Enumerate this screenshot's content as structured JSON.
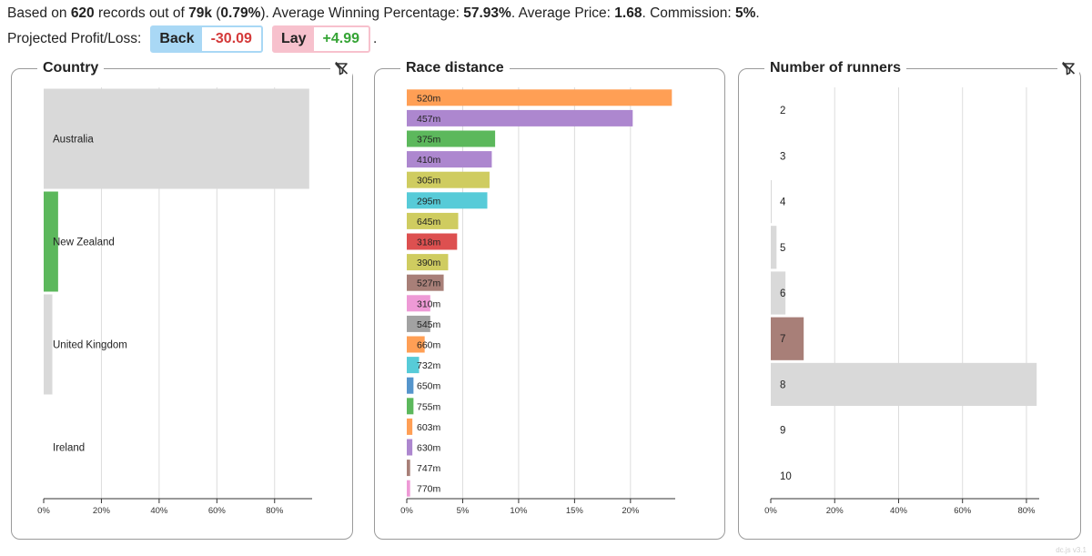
{
  "summary": {
    "prefix": "Based on ",
    "records": "620",
    "mid1": " records out of ",
    "total": "79k",
    "mid2": " (",
    "percent": "0.79%",
    "mid3": "). Average Winning Percentage: ",
    "avg_win": "57.93%",
    "mid4": ". Average Price: ",
    "avg_price": "1.68",
    "mid5": ". Commission: ",
    "commission": "5%",
    "end": "."
  },
  "profit_loss": {
    "label": "Projected Profit/Loss:",
    "back_label": "Back",
    "back_value": "-30.09",
    "lay_label": "Lay",
    "lay_value": "+4.99",
    "trailing": "."
  },
  "colors": {
    "panel_border": "#9a9a9a",
    "grid": "#dcdcdc",
    "back_box": "#a9d8f5",
    "lay_box": "#f7c1cd",
    "negative": "#d43a3a",
    "positive": "#35a435"
  },
  "chart_data": [
    {
      "type": "bar",
      "orientation": "horizontal",
      "title": "Country",
      "icon": "filter-off-icon",
      "xlim": [
        0,
        93
      ],
      "ticks": [
        "0%",
        "20%",
        "40%",
        "60%",
        "80%"
      ],
      "tick_values": [
        0,
        20,
        40,
        60,
        80
      ],
      "grid": true,
      "categories": [
        "Australia",
        "New Zealand",
        "United Kingdom",
        "Ireland"
      ],
      "values": [
        92,
        5,
        3,
        0
      ],
      "colors": [
        "#d9d9d9",
        "#5cb85c",
        "#d9d9d9",
        "#d9d9d9"
      ]
    },
    {
      "type": "bar",
      "orientation": "horizontal",
      "title": "Race distance",
      "xlim": [
        0,
        24
      ],
      "ticks": [
        "0%",
        "5%",
        "10%",
        "15%",
        "20%"
      ],
      "tick_values": [
        0,
        5,
        10,
        15,
        20
      ],
      "grid": true,
      "categories": [
        "520m",
        "457m",
        "375m",
        "410m",
        "305m",
        "295m",
        "645m",
        "318m",
        "390m",
        "527m",
        "310m",
        "545m",
        "660m",
        "732m",
        "650m",
        "755m",
        "603m",
        "630m",
        "747m",
        "770m"
      ],
      "values": [
        23.7,
        20.2,
        7.9,
        7.6,
        7.4,
        7.2,
        4.6,
        4.5,
        3.7,
        3.3,
        2.1,
        2.1,
        1.6,
        1.1,
        0.6,
        0.6,
        0.5,
        0.5,
        0.3,
        0.3
      ],
      "colors": [
        "#ff9f55",
        "#ad87cf",
        "#5cb85c",
        "#ad87cf",
        "#cfcc60",
        "#57cbd8",
        "#cfcc60",
        "#dd5050",
        "#cfcc60",
        "#a87f78",
        "#ee9ad6",
        "#a2a2a2",
        "#ff9f55",
        "#57cbd8",
        "#5595cc",
        "#5cb85c",
        "#ff9f55",
        "#ad87cf",
        "#a87f78",
        "#ee9ad6"
      ]
    },
    {
      "type": "bar",
      "orientation": "horizontal",
      "title": "Number of runners",
      "icon": "filter-off-icon",
      "xlim": [
        0,
        84
      ],
      "ticks": [
        "0%",
        "20%",
        "40%",
        "60%",
        "80%"
      ],
      "tick_values": [
        0,
        20,
        40,
        60,
        80
      ],
      "grid": true,
      "categories": [
        "2",
        "3",
        "4",
        "5",
        "6",
        "7",
        "8",
        "9",
        "10"
      ],
      "values": [
        0,
        0,
        0.3,
        1.8,
        4.6,
        10.3,
        83.2,
        0,
        0
      ],
      "colors": [
        "#d9d9d9",
        "#d9d9d9",
        "#d9d9d9",
        "#d9d9d9",
        "#d9d9d9",
        "#a87f78",
        "#d9d9d9",
        "#d9d9d9",
        "#d9d9d9"
      ]
    }
  ],
  "watermark": "dc.js v3.1"
}
